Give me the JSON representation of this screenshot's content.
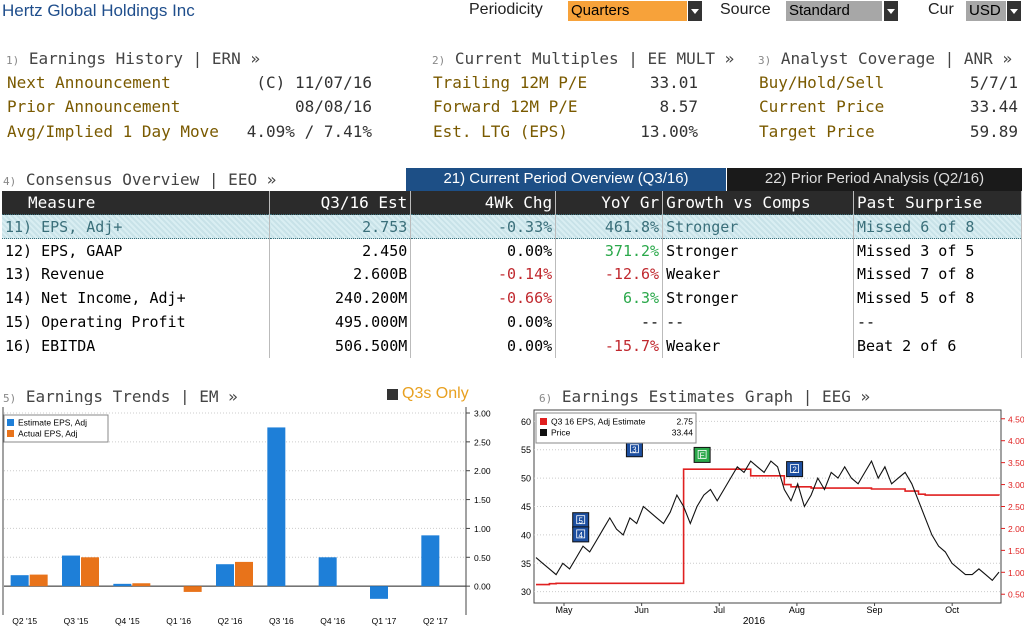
{
  "header": {
    "company": "Hertz Global Holdings Inc",
    "periodicity_label": "Periodicity",
    "periodicity_value": "Quarters",
    "source_label": "Source",
    "source_value": "Standard",
    "cur_label": "Cur",
    "cur_value": "USD"
  },
  "earnings_history": {
    "num": "1)",
    "title": "Earnings History | ERN »",
    "rows": [
      {
        "label": "Next Announcement",
        "value": "(C)  11/07/16"
      },
      {
        "label": "Prior Announcement",
        "value": "08/08/16"
      },
      {
        "label": "Avg/Implied 1 Day Move",
        "value": "4.09% / 7.41%"
      }
    ]
  },
  "current_multiples": {
    "num": "2)",
    "title": "Current Multiples | EE MULT »",
    "rows": [
      {
        "label": "Trailing 12M P/E",
        "value": "33.01"
      },
      {
        "label": "Forward 12M P/E",
        "value": "8.57"
      },
      {
        "label": "Est. LTG (EPS)",
        "value": "13.00%"
      }
    ]
  },
  "analyst_coverage": {
    "num": "3)",
    "title": "Analyst Coverage | ANR »",
    "rows": [
      {
        "label": "Buy/Hold/Sell",
        "value": "5/7/1"
      },
      {
        "label": "Current Price",
        "value": "33.44"
      },
      {
        "label": "Target Price",
        "value": "59.89"
      }
    ]
  },
  "consensus": {
    "num": "4)",
    "title": "Consensus Overview | EEO »",
    "tab_current": "21) Current Period Overview (Q3/16)",
    "tab_prior": "22) Prior Period Analysis (Q2/16)",
    "columns": [
      "Measure",
      "Q3/16 Est",
      "4Wk Chg",
      "YoY Gr",
      "Growth vs Comps",
      "Past Surprise"
    ],
    "rows": [
      {
        "measure": "11) EPS, Adj+",
        "est": "2.753",
        "chg": "-0.33%",
        "yoy": "461.8%",
        "growth": "Stronger",
        "surprise": "Missed 6 of 8"
      },
      {
        "measure": "12) EPS, GAAP",
        "est": "2.450",
        "chg": "0.00%",
        "yoy": "371.2%",
        "growth": "Stronger",
        "surprise": "Missed 3 of 5"
      },
      {
        "measure": "13) Revenue",
        "est": "2.600B",
        "chg": "-0.14%",
        "yoy": "-12.6%",
        "growth": "Weaker",
        "surprise": "Missed 7 of 8"
      },
      {
        "measure": "14) Net Income, Adj+",
        "est": "240.200M",
        "chg": "-0.66%",
        "yoy": "6.3%",
        "growth": "Stronger",
        "surprise": "Missed 5 of 8"
      },
      {
        "measure": "15) Operating Profit",
        "est": "495.000M",
        "chg": "0.00%",
        "yoy": "--",
        "growth": "--",
        "surprise": "--"
      },
      {
        "measure": "16) EBITDA",
        "est": "506.500M",
        "chg": "0.00%",
        "yoy": "-15.7%",
        "growth": "Weaker",
        "surprise": "Beat 2 of 6"
      }
    ]
  },
  "trends": {
    "num": "5)",
    "title": "Earnings Trends | EM »",
    "toggle": "Q3s Only"
  },
  "graph": {
    "num": "6)",
    "title": "Earnings Estimates Graph | EEG »",
    "year_label": "2016"
  },
  "chart_data": [
    {
      "type": "bar",
      "categories": [
        "Q2 '15",
        "Q3 '15",
        "Q4 '15",
        "Q1 '16",
        "Q2 '16",
        "Q3 '16",
        "Q4 '16",
        "Q1 '17",
        "Q2 '17"
      ],
      "series": [
        {
          "name": "Estimate EPS, Adj",
          "color": "#1e7fd8",
          "values": [
            0.19,
            0.53,
            0.04,
            null,
            0.38,
            2.75,
            0.5,
            -0.22,
            0.88
          ]
        },
        {
          "name": "Actual EPS, Adj",
          "color": "#e8731a",
          "values": [
            0.2,
            0.5,
            0.05,
            -0.1,
            0.42,
            null,
            null,
            null,
            null
          ]
        }
      ],
      "ylim": [
        -0.5,
        3.0
      ],
      "yticks": [
        "3.00",
        "2.50",
        "2.00",
        "1.50",
        "1.00",
        "0.50",
        "0.00"
      ],
      "ytick_values": [
        3.0,
        2.5,
        2.0,
        1.5,
        1.0,
        0.5,
        0.0
      ],
      "legend_placement": "top-left"
    },
    {
      "type": "line",
      "x_labels": [
        "May",
        "Jun",
        "Jul",
        "Aug",
        "Sep",
        "Oct"
      ],
      "legend": [
        {
          "name": "Q3 16 EPS, Adj Estimate",
          "value": "2.75",
          "color": "#e02020"
        },
        {
          "name": "Price",
          "value": "33.44",
          "color": "#111111"
        }
      ],
      "left_ticks": [
        "60",
        "55",
        "50",
        "45",
        "40",
        "35",
        "30"
      ],
      "left_tick_values": [
        60,
        55,
        50,
        45,
        40,
        35,
        30
      ],
      "right_ticks": [
        "4.50",
        "4.00",
        "3.50",
        "3.00",
        "2.50",
        "2.00",
        "1.50",
        "1.00",
        "0.50"
      ],
      "right_tick_values": [
        4.5,
        4.0,
        3.5,
        3.0,
        2.5,
        2.0,
        1.5,
        1.0,
        0.5
      ],
      "left_range": [
        28,
        62
      ],
      "right_range": [
        0.3,
        4.7
      ],
      "price": [
        36,
        35,
        34,
        33,
        35,
        34,
        36,
        38,
        37,
        39,
        41,
        43,
        41,
        40,
        43,
        42,
        45,
        44,
        43,
        42,
        44,
        47,
        45,
        42,
        45,
        47,
        48,
        46,
        48,
        50,
        52,
        51,
        53,
        52,
        51,
        53,
        52,
        48,
        46,
        49,
        45,
        47,
        50,
        48,
        51,
        50,
        52,
        50,
        49,
        51,
        53,
        50,
        52,
        49,
        50,
        51,
        49,
        46,
        43,
        40,
        38,
        37,
        35,
        34,
        33,
        33,
        34,
        33,
        32,
        33.44
      ],
      "estimate": [
        0.72,
        0.72,
        0.74,
        0.75,
        0.75,
        0.75,
        0.75,
        0.75,
        0.75,
        0.75,
        0.75,
        0.75,
        0.75,
        0.75,
        0.75,
        0.75,
        0.75,
        0.75,
        0.75,
        0.75,
        0.75,
        0.75,
        3.35,
        3.35,
        3.35,
        3.35,
        3.35,
        3.35,
        3.35,
        3.35,
        3.35,
        3.35,
        3.2,
        3.2,
        3.2,
        3.2,
        3.2,
        3.0,
        2.95,
        2.95,
        2.95,
        2.92,
        2.92,
        2.92,
        2.92,
        2.92,
        2.92,
        2.92,
        2.92,
        2.92,
        2.9,
        2.9,
        2.9,
        2.9,
        2.9,
        2.85,
        2.85,
        2.78,
        2.76,
        2.76,
        2.76,
        2.76,
        2.76,
        2.76,
        2.76,
        2.76,
        2.76,
        2.76,
        2.76,
        2.75
      ],
      "markers": [
        {
          "label": "5",
          "color": "#1d4fa0",
          "price": 42.5
        },
        {
          "label": "4",
          "color": "#1d4fa0",
          "price": 40
        },
        {
          "label": "3",
          "color": "#1d4fa0",
          "price": 55
        },
        {
          "label": "E",
          "color": "#2aa84a",
          "price": 54
        },
        {
          "label": "2",
          "color": "#1d4fa0",
          "price": 51.5
        }
      ]
    }
  ]
}
